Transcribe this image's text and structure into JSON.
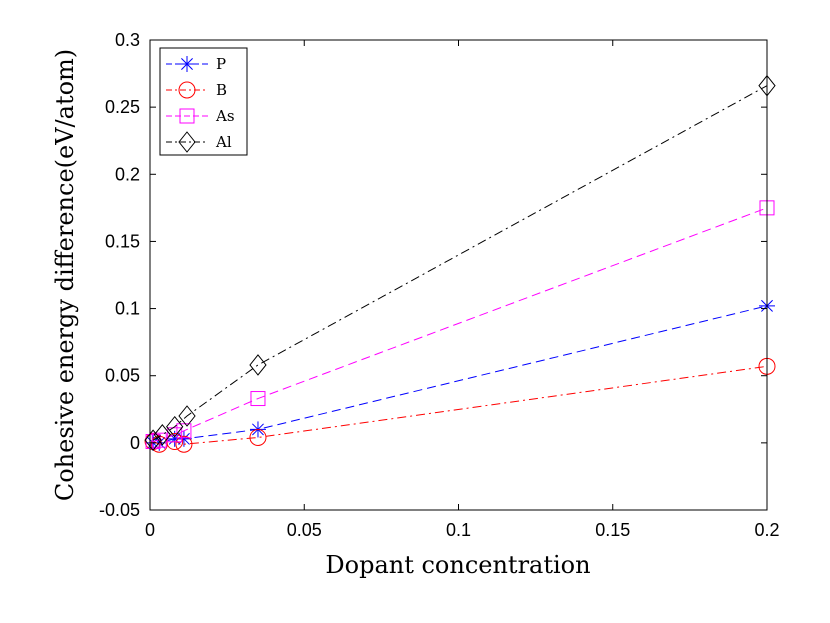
{
  "chart_data": {
    "type": "line",
    "title": "",
    "xlabel": "Dopant concentration",
    "ylabel": "Cohesive energy difference(eV/atom)",
    "xlim": [
      0,
      0.2
    ],
    "ylim": [
      -0.05,
      0.3
    ],
    "xticks": [
      0,
      0.05,
      0.1,
      0.15,
      0.2
    ],
    "xtick_labels": [
      "0",
      "0.05",
      "0.1",
      "0.15",
      "0.2"
    ],
    "yticks": [
      -0.05,
      0,
      0.05,
      0.1,
      0.15,
      0.2,
      0.25,
      0.3
    ],
    "ytick_labels": [
      "-0.05",
      "0",
      "0.05",
      "0.1",
      "0.15",
      "0.2",
      "0.25",
      "0.3"
    ],
    "grid": false,
    "legend_position": "top-left",
    "series": [
      {
        "name": "P",
        "color": "#0000ff",
        "marker": "asterisk",
        "dash": "dashed",
        "x": [
          0.001,
          0.003,
          0.008,
          0.011,
          0.035,
          0.2
        ],
        "y": [
          0.0,
          0.0,
          0.003,
          0.003,
          0.01,
          0.102
        ]
      },
      {
        "name": "B",
        "color": "#ff0000",
        "marker": "circle",
        "dash": "dashdot",
        "x": [
          0.001,
          0.003,
          0.008,
          0.011,
          0.035,
          0.2
        ],
        "y": [
          0.001,
          -0.001,
          0.001,
          -0.001,
          0.004,
          0.057
        ]
      },
      {
        "name": "As",
        "color": "#ff00ff",
        "marker": "square",
        "dash": "dashed",
        "x": [
          0.001,
          0.003,
          0.008,
          0.011,
          0.035,
          0.2
        ],
        "y": [
          0.001,
          0.002,
          0.006,
          0.009,
          0.033,
          0.175
        ]
      },
      {
        "name": "Al",
        "color": "#000000",
        "marker": "diamond",
        "dash": "dashdot",
        "x": [
          0.001,
          0.004,
          0.008,
          0.012,
          0.035,
          0.2
        ],
        "y": [
          0.002,
          0.006,
          0.012,
          0.02,
          0.058,
          0.266
        ]
      }
    ]
  }
}
